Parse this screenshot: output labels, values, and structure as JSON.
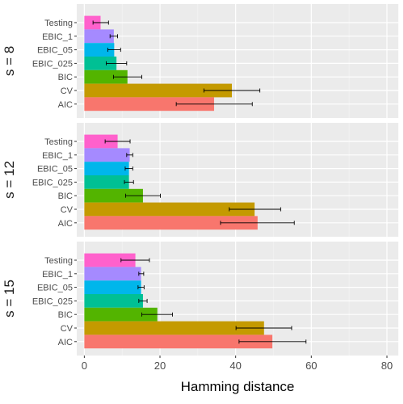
{
  "chart_data": {
    "type": "bar",
    "orientation": "horizontal",
    "xlabel": "Hamming distance",
    "ylabel": "",
    "xlim": [
      -2,
      83
    ],
    "xticks": [
      0,
      20,
      40,
      60,
      80
    ],
    "grid": true,
    "legend": "none",
    "categories": [
      "Testing",
      "EBIC_1",
      "EBIC_05",
      "EBIC_025",
      "BIC",
      "CV",
      "AIC"
    ],
    "colors": {
      "Testing": "#FF61CC",
      "EBIC_1": "#A58AFF",
      "EBIC_05": "#00B6EB",
      "EBIC_025": "#00C094",
      "BIC": "#53B400",
      "CV": "#C49A00",
      "AIC": "#F8766D"
    },
    "panels": [
      {
        "label": "s = 8",
        "values": [
          4.3,
          7.8,
          7.9,
          8.5,
          11.4,
          39.0,
          34.3
        ],
        "err_low": [
          2.3,
          6.8,
          6.2,
          5.8,
          7.7,
          31.6,
          24.3
        ],
        "err_high": [
          6.4,
          8.8,
          9.6,
          11.2,
          15.2,
          46.4,
          44.4
        ]
      },
      {
        "label": "s = 12",
        "values": [
          8.8,
          12.0,
          11.8,
          11.8,
          15.5,
          45.0,
          45.8
        ],
        "err_low": [
          5.5,
          11.2,
          10.8,
          10.6,
          10.9,
          38.3,
          36.0
        ],
        "err_high": [
          12.1,
          12.8,
          12.8,
          13.0,
          20.1,
          51.9,
          55.5
        ]
      },
      {
        "label": "s = 15",
        "values": [
          13.5,
          15.0,
          15.0,
          15.5,
          19.3,
          47.5,
          49.7
        ],
        "err_low": [
          9.7,
          14.4,
          14.2,
          14.4,
          15.2,
          40.1,
          40.9
        ],
        "err_high": [
          17.2,
          15.7,
          15.8,
          16.6,
          23.3,
          54.8,
          58.6
        ]
      }
    ]
  }
}
